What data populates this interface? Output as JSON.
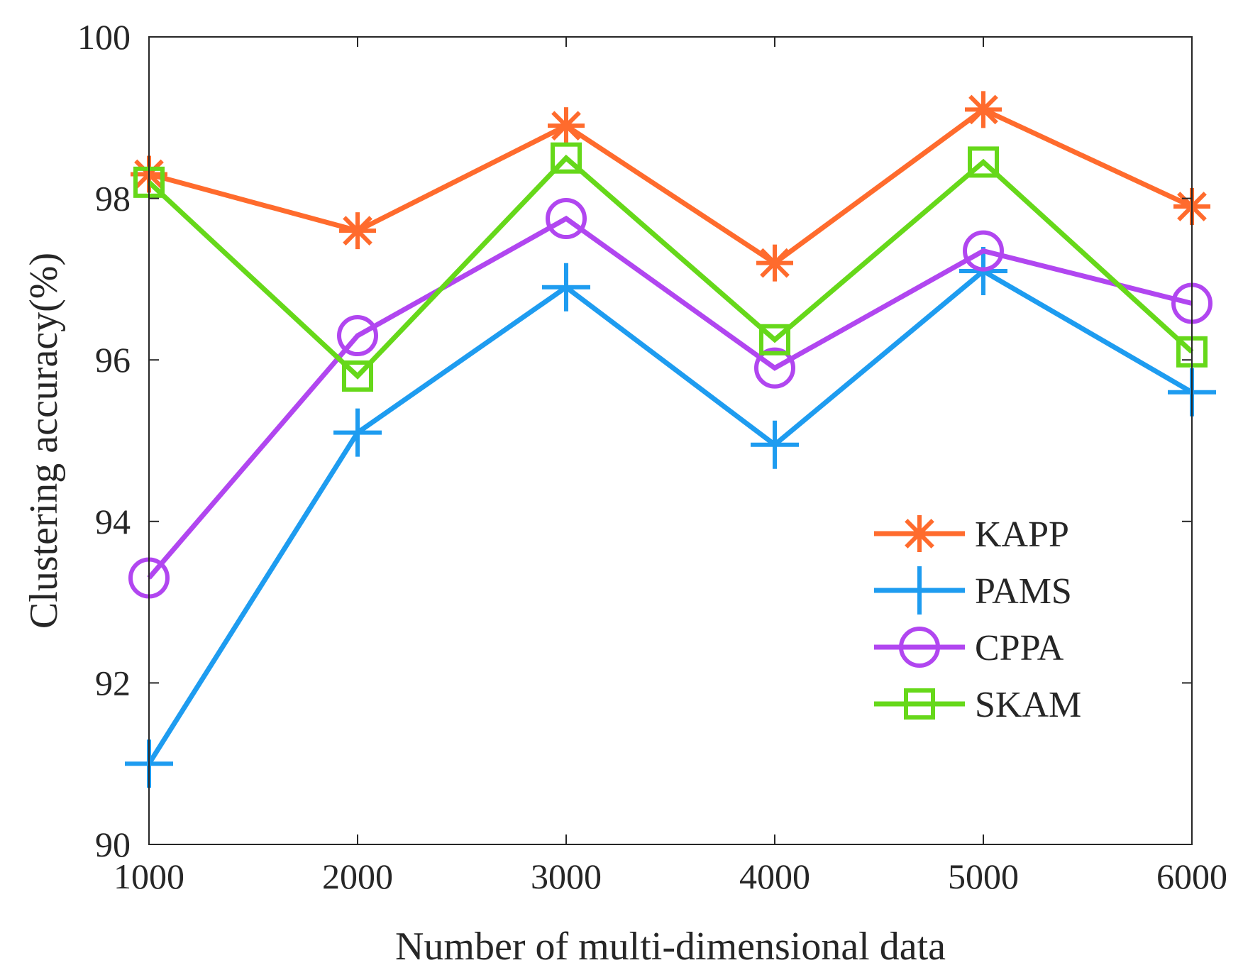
{
  "chart_data": {
    "type": "line",
    "title": "",
    "xlabel": "Number of multi-dimensional data",
    "ylabel": "Clustering accuracy(%)",
    "x": [
      1000,
      2000,
      3000,
      4000,
      5000,
      6000
    ],
    "xlim": [
      1000,
      6000
    ],
    "ylim": [
      90,
      100
    ],
    "xticks": [
      "1000",
      "2000",
      "3000",
      "4000",
      "5000",
      "6000"
    ],
    "yticks": [
      "90",
      "92",
      "94",
      "96",
      "98",
      "100"
    ],
    "grid": false,
    "legend_position": "lower-right",
    "series": [
      {
        "name": "KAPP",
        "marker": "asterisk",
        "color": "#ff6b2d",
        "values": [
          98.3,
          97.6,
          98.9,
          97.2,
          99.1,
          97.9
        ]
      },
      {
        "name": "PAMS",
        "marker": "plus",
        "color": "#1e9cf0",
        "values": [
          91.0,
          95.1,
          96.9,
          94.95,
          97.1,
          95.6
        ]
      },
      {
        "name": "CPPA",
        "marker": "circle",
        "color": "#b146f0",
        "values": [
          93.3,
          96.3,
          97.75,
          95.9,
          97.35,
          96.7
        ]
      },
      {
        "name": "SKAM",
        "marker": "square",
        "color": "#66d81a",
        "values": [
          98.2,
          95.8,
          98.5,
          96.25,
          98.45,
          96.1
        ]
      }
    ]
  }
}
